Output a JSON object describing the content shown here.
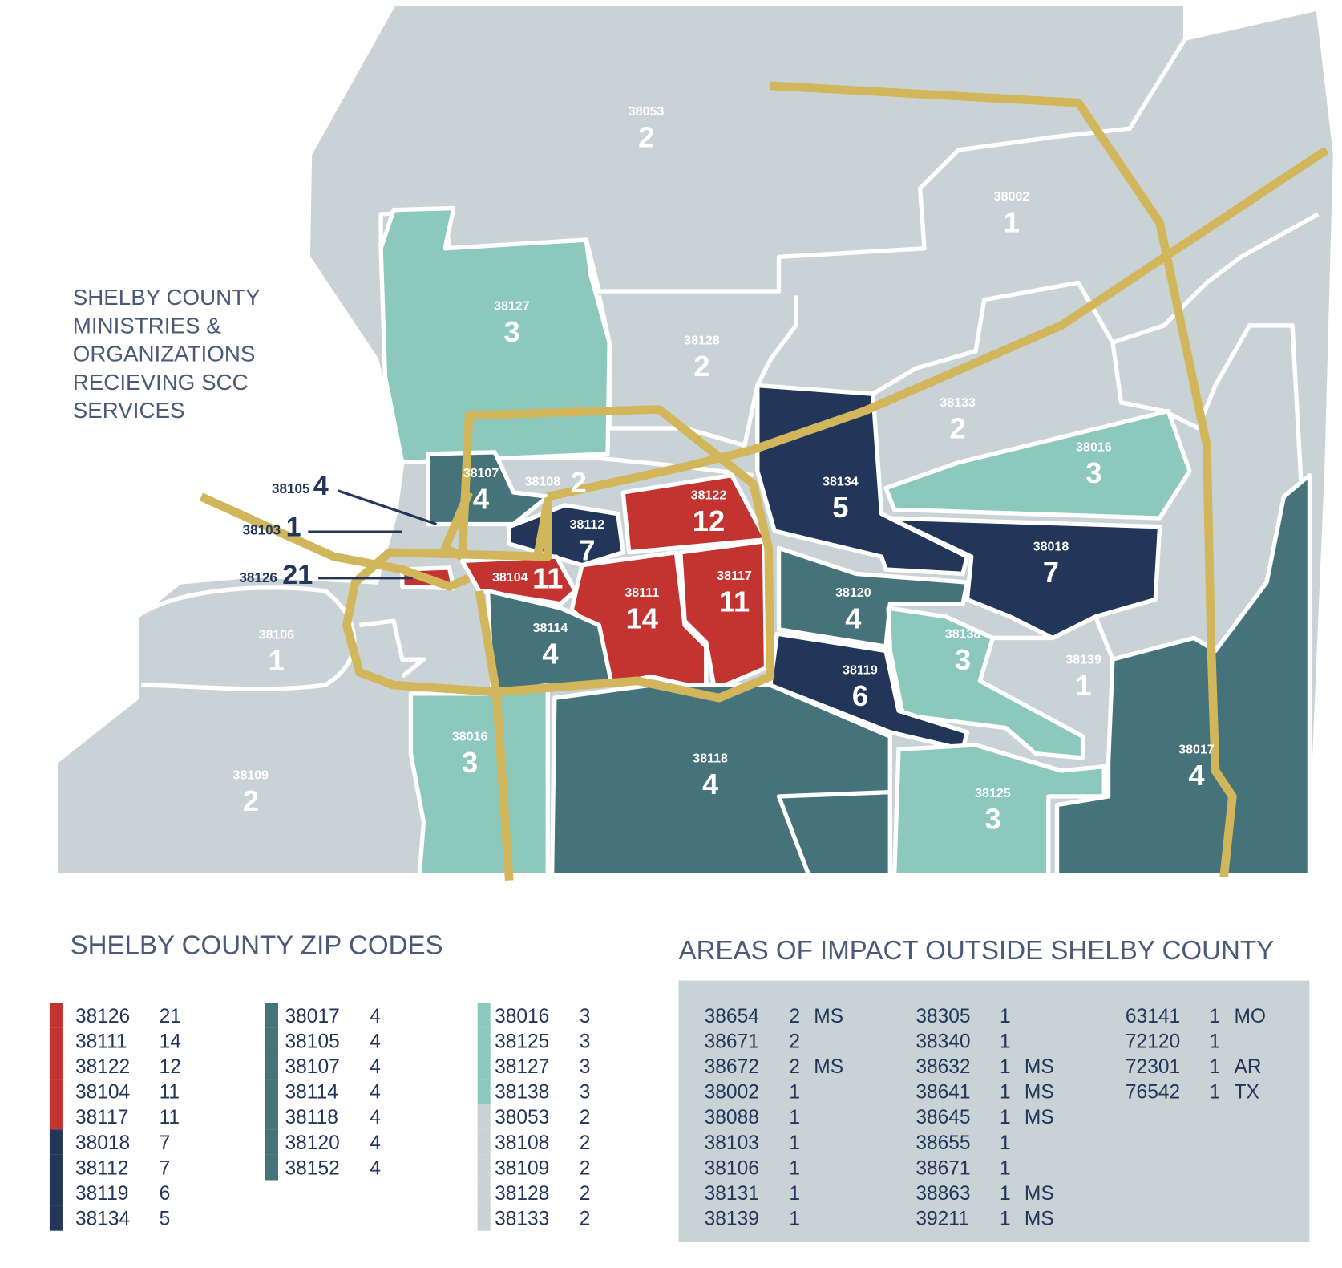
{
  "map": {
    "title_lines": [
      "SHELBY COUNTY",
      "MINISTRIES &",
      "ORGANIZATIONS",
      "RECIEVING SCC",
      "SERVICES"
    ],
    "regions": [
      {
        "zip": "38053",
        "count": 2,
        "color": "#c9d3d6"
      },
      {
        "zip": "38002",
        "count": 1,
        "color": "#c9d3d6"
      },
      {
        "zip": "38127",
        "count": 3,
        "color": "#8cc8bc"
      },
      {
        "zip": "38128",
        "count": 2,
        "color": "#c9d3d6"
      },
      {
        "zip": "38133",
        "count": 2,
        "color": "#c9d3d6"
      },
      {
        "zip": "38016",
        "count": 3,
        "color": "#8cc8bc"
      },
      {
        "zip": "38107",
        "count": 4,
        "color": "#46737a"
      },
      {
        "zip": "38108",
        "count": 2,
        "color": "#c9d3d6"
      },
      {
        "zip": "38134",
        "count": 5,
        "color": "#22365a"
      },
      {
        "zip": "38122",
        "count": 12,
        "color": "#c3332f"
      },
      {
        "zip": "38112",
        "count": 7,
        "color": "#22365a"
      },
      {
        "zip": "38018",
        "count": 7,
        "color": "#22365a"
      },
      {
        "zip": "38104",
        "count": 11,
        "color": "#c3332f"
      },
      {
        "zip": "38111",
        "count": 14,
        "color": "#c3332f"
      },
      {
        "zip": "38117",
        "count": 11,
        "color": "#c3332f"
      },
      {
        "zip": "38120",
        "count": 4,
        "color": "#46737a"
      },
      {
        "zip": "38106",
        "count": 1,
        "color": "#c9d3d6"
      },
      {
        "zip": "38114",
        "count": 4,
        "color": "#46737a"
      },
      {
        "zip": "38138",
        "count": 3,
        "color": "#8cc8bc"
      },
      {
        "zip": "38139",
        "count": 1,
        "color": "#c9d3d6"
      },
      {
        "zip": "38119",
        "count": 6,
        "color": "#22365a"
      },
      {
        "zip": "38016",
        "count": 3,
        "color": "#8cc8bc"
      },
      {
        "zip": "38118",
        "count": 4,
        "color": "#46737a"
      },
      {
        "zip": "38017",
        "count": 4,
        "color": "#46737a"
      },
      {
        "zip": "38109",
        "count": 2,
        "color": "#c9d3d6"
      },
      {
        "zip": "38125",
        "count": 3,
        "color": "#8cc8bc"
      }
    ],
    "callouts": [
      {
        "zip": "38105",
        "count": 4
      },
      {
        "zip": "38103",
        "count": 1
      },
      {
        "zip": "38126",
        "count": 21
      }
    ]
  },
  "zip_codes": {
    "title": "SHELBY COUNTY ZIP CODES",
    "entries": [
      {
        "zip": "38126",
        "count": 21,
        "color": "#c3332f"
      },
      {
        "zip": "38111",
        "count": 14,
        "color": "#c3332f"
      },
      {
        "zip": "38122",
        "count": 12,
        "color": "#c3332f"
      },
      {
        "zip": "38104",
        "count": 11,
        "color": "#c3332f"
      },
      {
        "zip": "38117",
        "count": 11,
        "color": "#c3332f"
      },
      {
        "zip": "38018",
        "count": 7,
        "color": "#22365a"
      },
      {
        "zip": "38112",
        "count": 7,
        "color": "#22365a"
      },
      {
        "zip": "38119",
        "count": 6,
        "color": "#22365a"
      },
      {
        "zip": "38134",
        "count": 5,
        "color": "#22365a"
      },
      {
        "zip": "38017",
        "count": 4,
        "color": "#46737a"
      },
      {
        "zip": "38105",
        "count": 4,
        "color": "#46737a"
      },
      {
        "zip": "38107",
        "count": 4,
        "color": "#46737a"
      },
      {
        "zip": "38114",
        "count": 4,
        "color": "#46737a"
      },
      {
        "zip": "38118",
        "count": 4,
        "color": "#46737a"
      },
      {
        "zip": "38120",
        "count": 4,
        "color": "#46737a"
      },
      {
        "zip": "38152",
        "count": 4,
        "color": "#46737a"
      },
      {
        "zip": "38016",
        "count": 3,
        "color": "#8cc8bc"
      },
      {
        "zip": "38125",
        "count": 3,
        "color": "#8cc8bc"
      },
      {
        "zip": "38127",
        "count": 3,
        "color": "#8cc8bc"
      },
      {
        "zip": "38138",
        "count": 3,
        "color": "#8cc8bc"
      },
      {
        "zip": "38053",
        "count": 2,
        "color": "#c9d3d6"
      },
      {
        "zip": "38108",
        "count": 2,
        "color": "#c9d3d6"
      },
      {
        "zip": "38109",
        "count": 2,
        "color": "#c9d3d6"
      },
      {
        "zip": "38128",
        "count": 2,
        "color": "#c9d3d6"
      },
      {
        "zip": "38133",
        "count": 2,
        "color": "#c9d3d6"
      }
    ]
  },
  "outside": {
    "title": "AREAS OF IMPACT OUTSIDE SHELBY COUNTY",
    "columns": [
      [
        [
          "38654",
          2,
          "MS"
        ],
        [
          "38671",
          2
        ],
        [
          "38672",
          2,
          "MS"
        ],
        [
          "38002",
          1
        ],
        [
          "38088",
          1
        ],
        [
          "38103",
          1
        ],
        [
          "38106",
          1
        ],
        [
          "38131",
          1
        ],
        [
          "38139",
          1
        ]
      ],
      [
        [
          "38305",
          1
        ],
        [
          "38340",
          1
        ],
        [
          "38632",
          1,
          "MS"
        ],
        [
          "38641",
          1,
          "MS"
        ],
        [
          "38645",
          1,
          "MS"
        ],
        [
          "38655",
          1
        ],
        [
          "38671",
          1
        ],
        [
          "38863",
          1,
          "MS"
        ],
        [
          "39211",
          1,
          "MS"
        ]
      ],
      [
        [
          "63141",
          1,
          "MO"
        ],
        [
          "72120",
          1
        ],
        [
          "72301",
          1,
          "AR"
        ],
        [
          "76542",
          1,
          "TX"
        ]
      ]
    ]
  }
}
